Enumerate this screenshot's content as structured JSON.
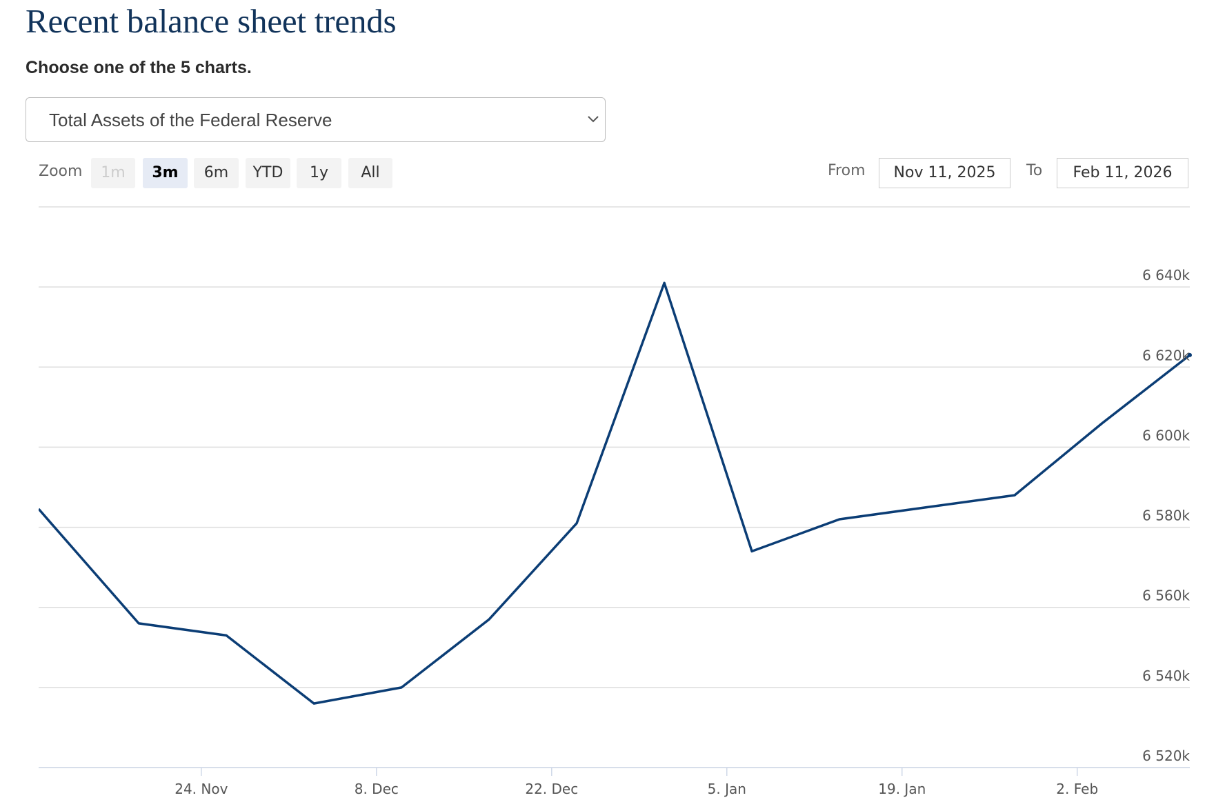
{
  "page": {
    "title": "Recent balance sheet trends",
    "subtitle": "Choose one of the 5 charts."
  },
  "selector": {
    "selected": "Total Assets of the Federal Reserve",
    "icon": "chevron-down-icon"
  },
  "zoom": {
    "label": "Zoom",
    "buttons": [
      {
        "label": "1m",
        "state": "disabled"
      },
      {
        "label": "3m",
        "state": "active"
      },
      {
        "label": "6m",
        "state": "normal"
      },
      {
        "label": "YTD",
        "state": "normal"
      },
      {
        "label": "1y",
        "state": "normal"
      },
      {
        "label": "All",
        "state": "normal"
      }
    ]
  },
  "range": {
    "from_label": "From",
    "from_value": "Nov 11, 2025",
    "to_label": "To",
    "to_value": "Feb 11, 2026"
  },
  "colors": {
    "title": "#11335a",
    "line": "#0b3d75",
    "grid": "#dddddd",
    "axis": "#cfd8e8",
    "zoom_active_bg": "#e6ebf5"
  },
  "chart_data": {
    "type": "line",
    "series": [
      {
        "x": [
          "2025-11-12",
          "2025-11-19",
          "2025-11-26",
          "2025-12-03",
          "2025-12-10",
          "2025-12-17",
          "2025-12-24",
          "2025-12-31",
          "2026-01-07",
          "2026-01-14",
          "2026-01-21",
          "2026-01-28",
          "2026-02-04",
          "2026-02-11"
        ],
        "values": [
          6581,
          6556,
          6553,
          6536,
          6540,
          6557,
          6581,
          6641,
          6574,
          6582,
          6585,
          6588,
          6606,
          6623
        ]
      }
    ],
    "x_range": [
      "2025-11-11",
      "2026-02-11"
    ],
    "y_ticks": [
      {
        "value": 6520,
        "label": "6 520k"
      },
      {
        "value": 6540,
        "label": "6 540k"
      },
      {
        "value": 6560,
        "label": "6 560k"
      },
      {
        "value": 6580,
        "label": "6 580k"
      },
      {
        "value": 6600,
        "label": "6 600k"
      },
      {
        "value": 6620,
        "label": "6 620k"
      },
      {
        "value": 6640,
        "label": "6 640k"
      }
    ],
    "x_ticks": [
      {
        "date": "2025-11-24",
        "label": "24. Nov"
      },
      {
        "date": "2025-12-08",
        "label": "8. Dec"
      },
      {
        "date": "2025-12-22",
        "label": "22. Dec"
      },
      {
        "date": "2026-01-05",
        "label": "5. Jan"
      },
      {
        "date": "2026-01-19",
        "label": "19. Jan"
      },
      {
        "date": "2026-02-02",
        "label": "2. Feb"
      }
    ],
    "ylim": [
      6520,
      6660
    ],
    "grid": true,
    "legend": "none"
  }
}
